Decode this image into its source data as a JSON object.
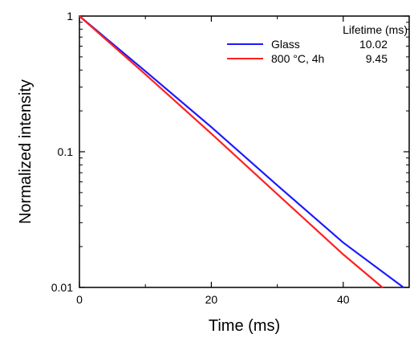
{
  "chart_data": {
    "type": "line",
    "title": "",
    "xlabel": "Time (ms)",
    "ylabel": "Normalized intensity",
    "xlim": [
      0,
      50
    ],
    "ylim": [
      0.01,
      1
    ],
    "yscale": "log",
    "grid": false,
    "x_ticks": [
      0,
      20,
      40
    ],
    "x_tick_labels": [
      "0",
      "20",
      "40"
    ],
    "y_ticks": [
      1,
      0.1,
      0.01
    ],
    "y_tick_labels": [
      "1",
      "0.1",
      "0.01"
    ],
    "legend": {
      "placement": "top-right",
      "header": "Lifetime (ms)"
    },
    "series": [
      {
        "name": "Glass",
        "lifetime_label": "10.02",
        "color": "#1a1aff",
        "x": [
          0,
          10,
          20,
          30,
          40,
          49.2
        ],
        "y": [
          1,
          0.392,
          0.152,
          0.0566,
          0.0214,
          0.00995
        ]
      },
      {
        "name": "800 °C, 4h",
        "lifetime_label": "9.45",
        "color": "#ff2020",
        "x": [
          0,
          10,
          20,
          30,
          40,
          46.0
        ],
        "y": [
          1,
          0.372,
          0.136,
          0.0487,
          0.0175,
          0.00995
        ]
      }
    ]
  }
}
